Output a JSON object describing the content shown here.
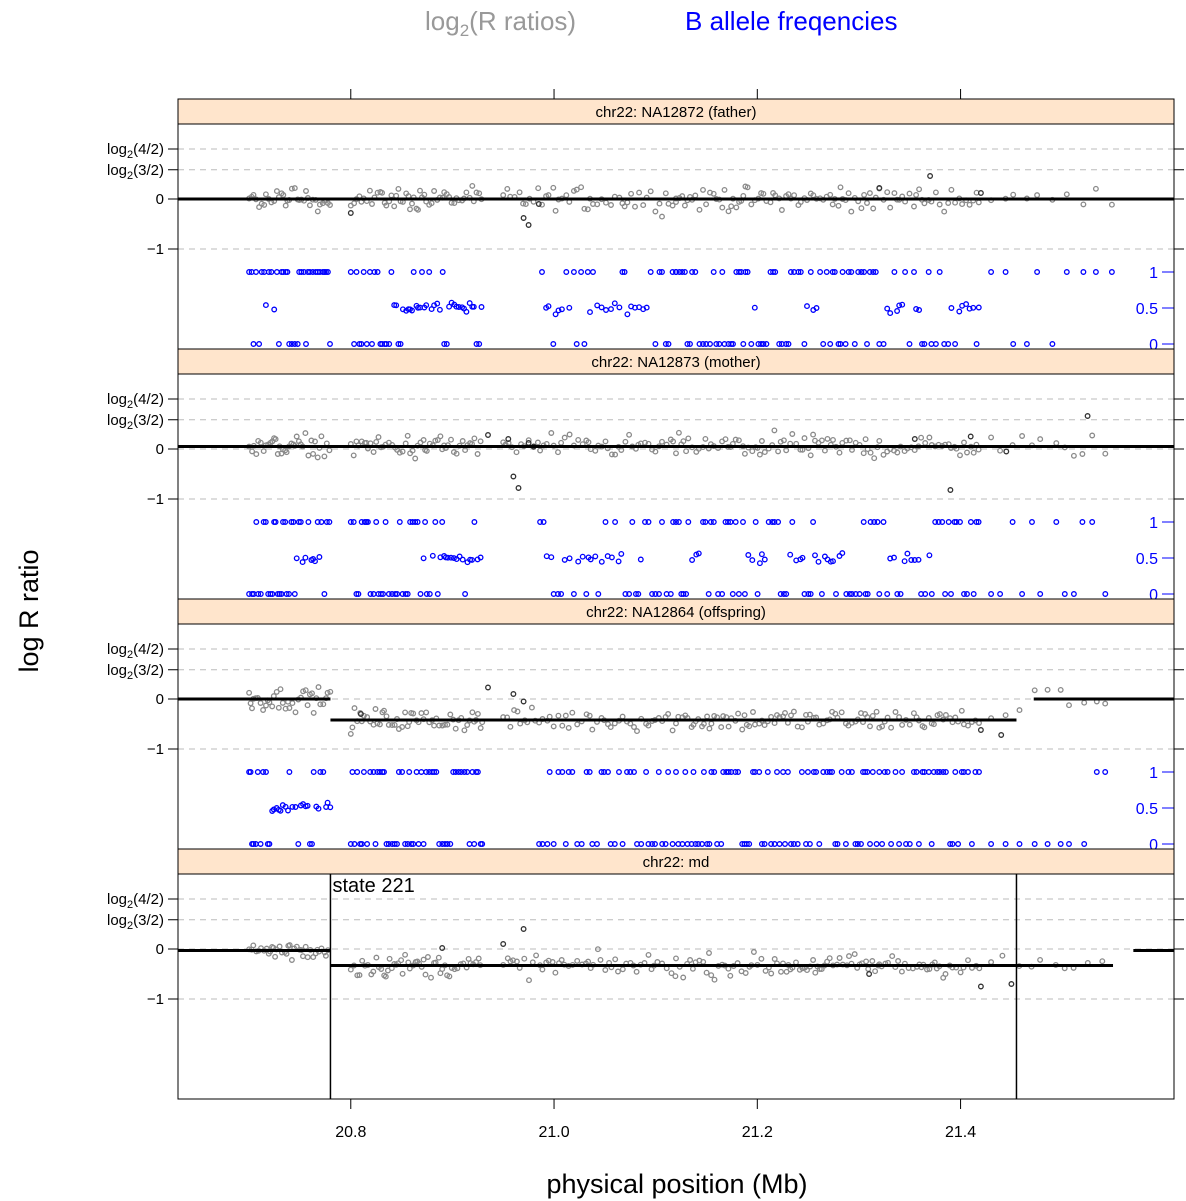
{
  "chart_data": {
    "type": "scatter",
    "legend": {
      "placement": "top-center",
      "items": [
        {
          "label_base": "log",
          "label_sub": "2",
          "label_rest": "(R ratios)",
          "color": "#999999"
        },
        {
          "label": "B allele freqencies",
          "color": "#0000ff"
        }
      ]
    },
    "xlabel": "physical position (Mb)",
    "ylabel": "log R ratio",
    "xlim": [
      20.63,
      21.61
    ],
    "x_ticks": [
      20.8,
      21.0,
      21.2,
      21.4
    ],
    "x_tick_labels": [
      "20.8",
      "21.0",
      "21.2",
      "21.4"
    ],
    "y_ticks": [
      {
        "value": 1.0,
        "base": "log",
        "sub": "2",
        "rest": "(4/2)"
      },
      {
        "value": 0.585,
        "base": "log",
        "sub": "2",
        "rest": "(3/2)"
      },
      {
        "value": 0,
        "label": "0"
      },
      {
        "value": -1,
        "label": "−1"
      }
    ],
    "baf_ticks": [
      {
        "value": 1,
        "label": "1"
      },
      {
        "value": 0.5,
        "label": "0.5"
      },
      {
        "value": 0,
        "label": "0"
      }
    ],
    "grid": true,
    "colors": {
      "logr_points": "#8a8a8a",
      "logr_dark_points": "#333333",
      "baf_points": "#0000ff",
      "segment_line": "#000000",
      "strip_fill": "#ffe5cc",
      "gridline": "#bbbbbb"
    },
    "panels": [
      {
        "title": "chr22: NA12872 (father)",
        "show_baf": true,
        "segments": [
          {
            "x0": 20.63,
            "x1": 21.61,
            "y": 0.0
          }
        ],
        "dark_points": [
          [
            20.8,
            -0.28
          ],
          [
            20.97,
            -0.38
          ],
          [
            20.975,
            -0.52
          ],
          [
            20.985,
            -0.1
          ],
          [
            21.32,
            0.22
          ],
          [
            21.37,
            0.46
          ],
          [
            21.42,
            0.12
          ]
        ],
        "het_ranges": [
          [
            20.715,
            20.727
          ],
          [
            20.84,
            20.89
          ],
          [
            20.895,
            20.93
          ],
          [
            20.99,
            21.02
          ],
          [
            21.035,
            21.065
          ],
          [
            21.07,
            21.095
          ],
          [
            21.195,
            21.2
          ],
          [
            21.245,
            21.26
          ],
          [
            21.325,
            21.36
          ],
          [
            21.39,
            21.42
          ]
        ]
      },
      {
        "title": "chr22: NA12873 (mother)",
        "show_baf": true,
        "segments": [
          {
            "x0": 20.63,
            "x1": 21.61,
            "y": 0.05
          }
        ],
        "dark_points": [
          [
            20.935,
            0.28
          ],
          [
            20.955,
            0.2
          ],
          [
            20.975,
            0.12
          ],
          [
            20.98,
            0.05
          ],
          [
            20.96,
            -0.55
          ],
          [
            20.965,
            -0.78
          ],
          [
            21.355,
            0.2
          ],
          [
            21.39,
            -0.82
          ],
          [
            21.41,
            0.25
          ],
          [
            21.445,
            -0.05
          ],
          [
            21.525,
            0.66
          ]
        ],
        "het_ranges": [
          [
            20.69,
            20.695
          ],
          [
            20.745,
            20.77
          ],
          [
            20.87,
            20.93
          ],
          [
            20.99,
            21.07
          ],
          [
            21.085,
            21.09
          ],
          [
            21.135,
            21.145
          ],
          [
            21.19,
            21.21
          ],
          [
            21.23,
            21.25
          ],
          [
            21.255,
            21.29
          ],
          [
            21.33,
            21.37
          ],
          [
            21.48,
            21.49
          ],
          [
            21.545,
            21.56
          ]
        ]
      },
      {
        "title": "chr22: NA12864 (offspring)",
        "show_baf": true,
        "segments": [
          {
            "x0": 20.63,
            "x1": 20.78,
            "y": 0.0
          },
          {
            "x0": 20.78,
            "x1": 21.455,
            "y": -0.42
          },
          {
            "x0": 21.472,
            "x1": 21.61,
            "y": 0.0
          }
        ],
        "dark_points": [
          [
            20.81,
            -0.3
          ],
          [
            20.935,
            0.23
          ],
          [
            20.96,
            0.1
          ],
          [
            20.97,
            -0.05
          ],
          [
            21.42,
            -0.62
          ],
          [
            21.44,
            -0.72
          ]
        ],
        "het_ranges": [
          [
            20.675,
            20.685
          ],
          [
            20.72,
            20.78
          ]
        ]
      },
      {
        "title": "chr22: md",
        "show_baf": false,
        "annotation": "state 221",
        "state_bounds": [
          20.78,
          21.455
        ],
        "segments": [
          {
            "x0": 20.63,
            "x1": 20.78,
            "y": -0.03
          },
          {
            "x0": 20.78,
            "x1": 21.55,
            "y": -0.33
          },
          {
            "x0": 21.57,
            "x1": 21.61,
            "y": -0.03
          }
        ],
        "dark_points": [
          [
            20.89,
            0.02
          ],
          [
            20.95,
            0.1
          ],
          [
            20.97,
            0.4
          ],
          [
            21.31,
            -0.5
          ],
          [
            21.42,
            -0.75
          ],
          [
            21.45,
            -0.7
          ]
        ],
        "het_ranges": []
      }
    ]
  }
}
